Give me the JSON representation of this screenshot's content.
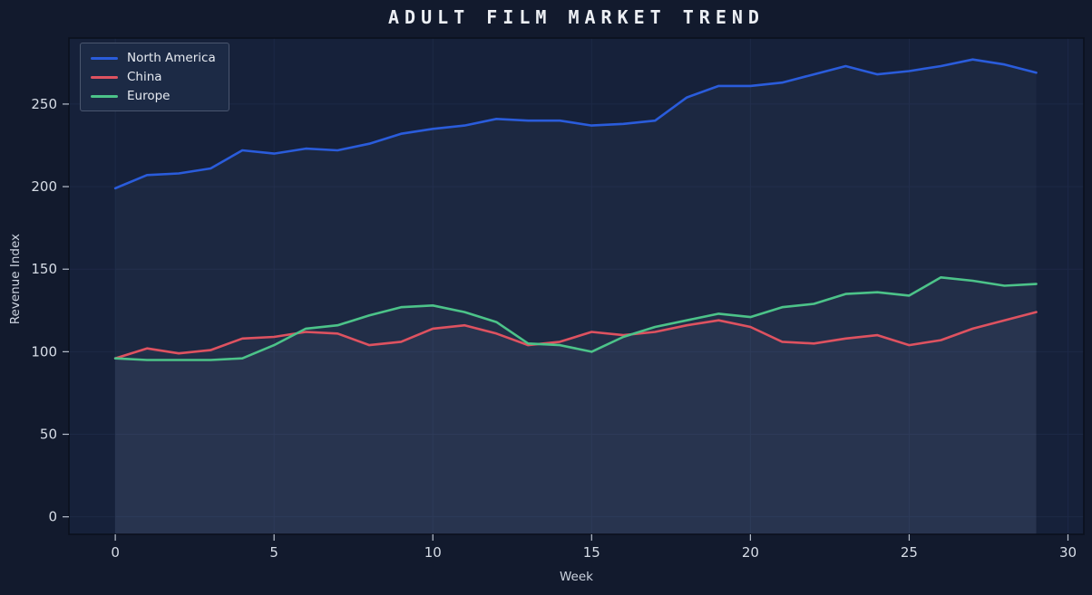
{
  "chart_data": {
    "type": "line",
    "title": "ADULT FILM MARKET TREND",
    "xlabel": "Week",
    "ylabel": "Revenue Index",
    "x": [
      0,
      1,
      2,
      3,
      4,
      5,
      6,
      7,
      8,
      9,
      10,
      11,
      12,
      13,
      14,
      15,
      16,
      17,
      18,
      19,
      20,
      21,
      22,
      23,
      24,
      25,
      26,
      27,
      28,
      29
    ],
    "series": [
      {
        "name": "North America",
        "color": "#2A5CDB",
        "values": [
          199,
          207,
          208,
          211,
          222,
          220,
          223,
          222,
          226,
          232,
          235,
          237,
          241,
          240,
          240,
          237,
          238,
          240,
          254,
          261,
          261,
          263,
          268,
          273,
          268,
          270,
          273,
          277,
          274,
          269
        ]
      },
      {
        "name": "China",
        "color": "#DE5260",
        "values": [
          96,
          102,
          99,
          101,
          108,
          109,
          112,
          111,
          104,
          106,
          114,
          116,
          111,
          104,
          106,
          112,
          110,
          112,
          116,
          119,
          115,
          106,
          105,
          108,
          110,
          104,
          107,
          114,
          119,
          124
        ]
      },
      {
        "name": "Europe",
        "color": "#4CC389",
        "values": [
          96,
          95,
          95,
          95,
          96,
          104,
          114,
          116,
          122,
          127,
          128,
          124,
          118,
          105,
          104,
          100,
          109,
          115,
          119,
          123,
          121,
          127,
          129,
          135,
          136,
          134,
          145,
          143,
          140,
          141
        ]
      }
    ],
    "x_ticks": [
      0,
      5,
      10,
      15,
      20,
      25,
      30
    ],
    "y_ticks": [
      0,
      50,
      100,
      150,
      200,
      250
    ],
    "xlim": [
      -1.46,
      30.5
    ],
    "ylim": [
      -10.6,
      290
    ],
    "grid": true,
    "legend_position": "upper-left"
  },
  "colors": {
    "figure_bg": "#121A2D",
    "plot_bg": "#16213A",
    "grid": "#1D2946",
    "spine": "#0A101D",
    "tick_mark": "#B9C1CE",
    "tick_label": "#D6DCE6",
    "axis_label": "#CCD3DF",
    "title": "#ECEFF4",
    "legend_bg": "#1C2A45",
    "legend_border": "#4A566E",
    "legend_text": "#E6EAF1",
    "area_fill": "rgba(140,162,204,0.055)"
  }
}
